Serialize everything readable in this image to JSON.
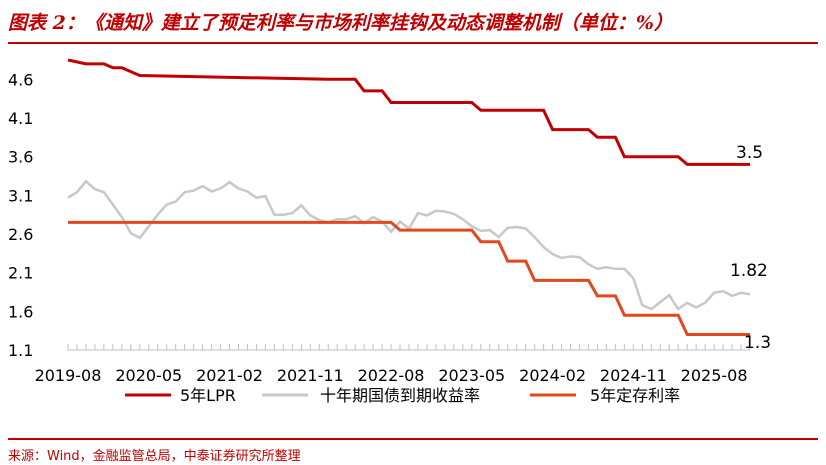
{
  "title": "图表 2：《通知》建立了预定利率与市场利率挂钩及动态调整机制（单位：%）",
  "source": "来源：Wind，金融监管总局，中泰证券研究所整理",
  "colors": {
    "lpr": "#c00000",
    "bond": "#c8c8c8",
    "deposit": "#e0481e",
    "rule": "#c00000"
  },
  "chart_data": {
    "type": "line",
    "x_ticks": [
      "2019-08",
      "2020-05",
      "2021-02",
      "2021-11",
      "2022-08",
      "2023-05",
      "2024-02",
      "2024-11",
      "2025-08"
    ],
    "y_ticks": [
      "4.6",
      "4.1",
      "3.6",
      "3.1",
      "2.6",
      "2.1",
      "1.6",
      "1.1"
    ],
    "ylim": [
      1.1,
      4.85
    ],
    "x_start": "2019-08",
    "x_end": "2025-12",
    "series": [
      {
        "name": "5年LPR",
        "color": "#c00000",
        "step": true,
        "points": [
          [
            "2019-08",
            4.85
          ],
          [
            "2019-10",
            4.8
          ],
          [
            "2019-12",
            4.8
          ],
          [
            "2020-01",
            4.75
          ],
          [
            "2020-02",
            4.75
          ],
          [
            "2020-04",
            4.65
          ],
          [
            "2022-01",
            4.6
          ],
          [
            "2022-04",
            4.6
          ],
          [
            "2022-05",
            4.45
          ],
          [
            "2022-07",
            4.45
          ],
          [
            "2022-08",
            4.3
          ],
          [
            "2023-05",
            4.3
          ],
          [
            "2023-06",
            4.2
          ],
          [
            "2024-01",
            4.2
          ],
          [
            "2024-02",
            3.95
          ],
          [
            "2024-06",
            3.95
          ],
          [
            "2024-07",
            3.85
          ],
          [
            "2024-09",
            3.85
          ],
          [
            "2024-10",
            3.6
          ],
          [
            "2025-04",
            3.6
          ],
          [
            "2025-05",
            3.5
          ],
          [
            "2025-12",
            3.5
          ]
        ],
        "end_label": "3.5"
      },
      {
        "name": "十年期国债到期收益率",
        "color": "#c8c8c8",
        "step": false,
        "points": [
          [
            "2019-08",
            3.07
          ],
          [
            "2019-09",
            3.14
          ],
          [
            "2019-10",
            3.28
          ],
          [
            "2019-11",
            3.18
          ],
          [
            "2019-12",
            3.14
          ],
          [
            "2020-01",
            2.98
          ],
          [
            "2020-02",
            2.82
          ],
          [
            "2020-03",
            2.61
          ],
          [
            "2020-04",
            2.55
          ],
          [
            "2020-05",
            2.7
          ],
          [
            "2020-06",
            2.85
          ],
          [
            "2020-07",
            2.98
          ],
          [
            "2020-08",
            3.02
          ],
          [
            "2020-09",
            3.14
          ],
          [
            "2020-10",
            3.16
          ],
          [
            "2020-11",
            3.22
          ],
          [
            "2020-12",
            3.15
          ],
          [
            "2021-01",
            3.19
          ],
          [
            "2021-02",
            3.27
          ],
          [
            "2021-03",
            3.19
          ],
          [
            "2021-04",
            3.15
          ],
          [
            "2021-05",
            3.07
          ],
          [
            "2021-06",
            3.09
          ],
          [
            "2021-07",
            2.85
          ],
          [
            "2021-08",
            2.85
          ],
          [
            "2021-09",
            2.87
          ],
          [
            "2021-10",
            2.97
          ],
          [
            "2021-11",
            2.84
          ],
          [
            "2021-12",
            2.78
          ],
          [
            "2022-01",
            2.75
          ],
          [
            "2022-02",
            2.79
          ],
          [
            "2022-03",
            2.79
          ],
          [
            "2022-04",
            2.83
          ],
          [
            "2022-05",
            2.74
          ],
          [
            "2022-06",
            2.82
          ],
          [
            "2022-07",
            2.76
          ],
          [
            "2022-08",
            2.63
          ],
          [
            "2022-09",
            2.76
          ],
          [
            "2022-10",
            2.67
          ],
          [
            "2022-11",
            2.87
          ],
          [
            "2022-12",
            2.84
          ],
          [
            "2023-01",
            2.9
          ],
          [
            "2023-02",
            2.89
          ],
          [
            "2023-03",
            2.86
          ],
          [
            "2023-04",
            2.79
          ],
          [
            "2023-05",
            2.7
          ],
          [
            "2023-06",
            2.64
          ],
          [
            "2023-07",
            2.65
          ],
          [
            "2023-08",
            2.56
          ],
          [
            "2023-09",
            2.68
          ],
          [
            "2023-10",
            2.69
          ],
          [
            "2023-11",
            2.67
          ],
          [
            "2023-12",
            2.56
          ],
          [
            "2024-01",
            2.43
          ],
          [
            "2024-02",
            2.34
          ],
          [
            "2024-03",
            2.29
          ],
          [
            "2024-04",
            2.31
          ],
          [
            "2024-05",
            2.3
          ],
          [
            "2024-06",
            2.21
          ],
          [
            "2024-07",
            2.15
          ],
          [
            "2024-08",
            2.17
          ],
          [
            "2024-09",
            2.15
          ],
          [
            "2024-10",
            2.15
          ],
          [
            "2024-11",
            2.03
          ],
          [
            "2024-12",
            1.68
          ],
          [
            "2025-01",
            1.63
          ],
          [
            "2025-02",
            1.72
          ],
          [
            "2025-03",
            1.81
          ],
          [
            "2025-04",
            1.63
          ],
          [
            "2025-05",
            1.71
          ],
          [
            "2025-06",
            1.65
          ],
          [
            "2025-07",
            1.71
          ],
          [
            "2025-08",
            1.84
          ],
          [
            "2025-09",
            1.86
          ],
          [
            "2025-10",
            1.8
          ],
          [
            "2025-11",
            1.84
          ],
          [
            "2025-12",
            1.82
          ]
        ],
        "end_label": "1.82"
      },
      {
        "name": "5年定存利率",
        "color": "#e0481e",
        "step": true,
        "points": [
          [
            "2019-08",
            2.75
          ],
          [
            "2022-08",
            2.75
          ],
          [
            "2022-09",
            2.65
          ],
          [
            "2023-05",
            2.65
          ],
          [
            "2023-06",
            2.5
          ],
          [
            "2023-08",
            2.5
          ],
          [
            "2023-09",
            2.25
          ],
          [
            "2023-11",
            2.25
          ],
          [
            "2023-12",
            2.0
          ],
          [
            "2024-06",
            2.0
          ],
          [
            "2024-07",
            1.8
          ],
          [
            "2024-09",
            1.8
          ],
          [
            "2024-10",
            1.55
          ],
          [
            "2025-04",
            1.55
          ],
          [
            "2025-05",
            1.3
          ],
          [
            "2025-12",
            1.3
          ]
        ],
        "end_label": "1.3"
      }
    ]
  }
}
